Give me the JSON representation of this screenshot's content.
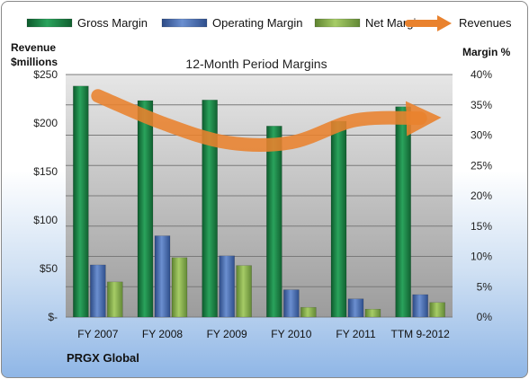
{
  "chart_data": {
    "type": "bar",
    "title": "12-Month Period Margins",
    "footer": "PRGX Global",
    "left_axis_label_line1": "Revenue",
    "left_axis_label_line2": "$millions",
    "right_axis_label": "Margin %",
    "categories": [
      "FY 2007",
      "FY 2008",
      "FY 2009",
      "FY 2010",
      "FY 2011",
      "TTM 9-2012"
    ],
    "left_axis": {
      "ylim": [
        0,
        250
      ],
      "ticks": [
        0,
        50,
        100,
        150,
        200,
        250
      ],
      "tick_labels": [
        "$-",
        "$50",
        "$100",
        "$150",
        "$200",
        "$250"
      ]
    },
    "right_axis": {
      "ylim": [
        0,
        40
      ],
      "ticks": [
        0,
        5,
        10,
        15,
        20,
        25,
        30,
        35,
        40
      ],
      "tick_labels": [
        "0%",
        "5%",
        "10%",
        "15%",
        "20%",
        "25%",
        "30%",
        "35%",
        "40%"
      ]
    },
    "legend_position": "top",
    "series": [
      {
        "name": "Gross Margin",
        "type": "bar",
        "axis": "right",
        "color": "#1f8a4c",
        "values": [
          38.1,
          35.7,
          35.8,
          31.5,
          32.3,
          34.7
        ]
      },
      {
        "name": "Operating Margin",
        "type": "bar",
        "axis": "right",
        "color": "#4a6fb5",
        "values": [
          8.6,
          13.4,
          10.1,
          4.5,
          3.0,
          3.7
        ]
      },
      {
        "name": "Net Margin",
        "type": "bar",
        "axis": "right",
        "color": "#8bb34a",
        "values": [
          5.8,
          9.8,
          8.5,
          1.6,
          1.3,
          2.4
        ]
      },
      {
        "name": "Revenues",
        "type": "line",
        "axis": "left",
        "color": "#e9822e",
        "values": [
          228,
          200,
          180,
          180,
          203,
          205
        ]
      }
    ]
  }
}
